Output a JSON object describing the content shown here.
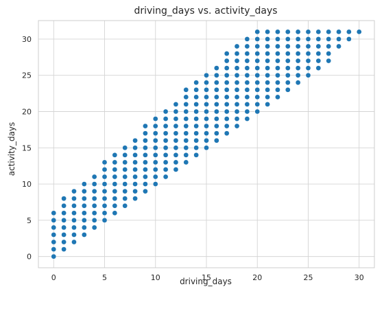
{
  "chart_data": {
    "type": "scatter",
    "title": "driving_days vs. activity_days",
    "xlabel": "driving_days",
    "ylabel": "activity_days",
    "xlim": [
      -1.5,
      31.5
    ],
    "ylim": [
      -1.55,
      32.55
    ],
    "xticks": [
      0,
      5,
      10,
      15,
      20,
      25,
      30
    ],
    "yticks": [
      0,
      5,
      10,
      15,
      20,
      25,
      30
    ],
    "grid": true,
    "point_color": "#1f77b4",
    "grid_color": "#d4d4d4",
    "axes_edge_color": "#cccccc",
    "ranges": [
      {
        "x": 0,
        "ymin": 0,
        "ymax": 6
      },
      {
        "x": 1,
        "ymin": 1,
        "ymax": 8
      },
      {
        "x": 2,
        "ymin": 2,
        "ymax": 9
      },
      {
        "x": 3,
        "ymin": 3,
        "ymax": 10
      },
      {
        "x": 4,
        "ymin": 4,
        "ymax": 11
      },
      {
        "x": 5,
        "ymin": 5,
        "ymax": 13
      },
      {
        "x": 6,
        "ymin": 6,
        "ymax": 14
      },
      {
        "x": 7,
        "ymin": 7,
        "ymax": 15
      },
      {
        "x": 8,
        "ymin": 8,
        "ymax": 16
      },
      {
        "x": 9,
        "ymin": 9,
        "ymax": 18
      },
      {
        "x": 10,
        "ymin": 10,
        "ymax": 19
      },
      {
        "x": 11,
        "ymin": 11,
        "ymax": 20
      },
      {
        "x": 12,
        "ymin": 12,
        "ymax": 21
      },
      {
        "x": 13,
        "ymin": 13,
        "ymax": 23
      },
      {
        "x": 14,
        "ymin": 14,
        "ymax": 24
      },
      {
        "x": 15,
        "ymin": 15,
        "ymax": 25
      },
      {
        "x": 16,
        "ymin": 16,
        "ymax": 26
      },
      {
        "x": 17,
        "ymin": 17,
        "ymax": 28
      },
      {
        "x": 18,
        "ymin": 18,
        "ymax": 29
      },
      {
        "x": 19,
        "ymin": 19,
        "ymax": 30
      },
      {
        "x": 20,
        "ymin": 20,
        "ymax": 31
      },
      {
        "x": 21,
        "ymin": 21,
        "ymax": 31
      },
      {
        "x": 22,
        "ymin": 22,
        "ymax": 31
      },
      {
        "x": 23,
        "ymin": 23,
        "ymax": 31
      },
      {
        "x": 24,
        "ymin": 24,
        "ymax": 31
      },
      {
        "x": 25,
        "ymin": 25,
        "ymax": 31
      },
      {
        "x": 26,
        "ymin": 26,
        "ymax": 31
      },
      {
        "x": 27,
        "ymin": 27,
        "ymax": 31
      },
      {
        "x": 28,
        "ymin": 29,
        "ymax": 31
      },
      {
        "x": 29,
        "ymin": 30,
        "ymax": 31
      },
      {
        "x": 30,
        "ymin": 31,
        "ymax": 31
      }
    ]
  }
}
